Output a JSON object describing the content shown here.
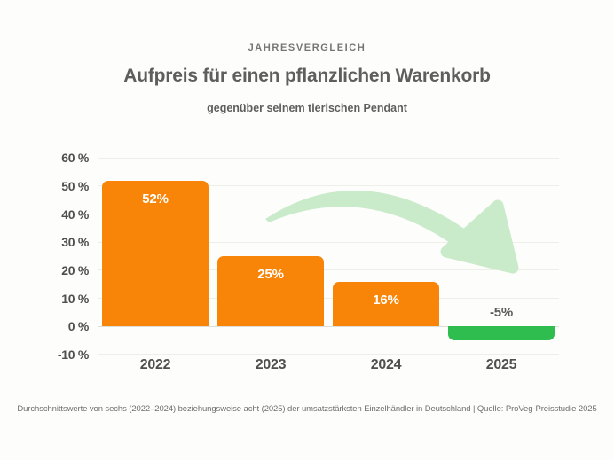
{
  "header": {
    "overline": "JAHRESVERGLEICH",
    "title": "Aufpreis für einen pflanzlichen Warenkorb",
    "subtitle": "gegenüber seinem tierischen Pendant"
  },
  "chart_data": {
    "type": "bar",
    "categories": [
      "2022",
      "2023",
      "2024",
      "2025"
    ],
    "values": [
      52,
      25,
      16,
      -5
    ],
    "bar_labels": [
      "52%",
      "25%",
      "16%",
      "-5%"
    ],
    "title": "Aufpreis für einen pflanzlichen Warenkorb",
    "xlabel": "",
    "ylabel": "",
    "ylim": [
      -10,
      60
    ],
    "grid": true,
    "yticks": [
      {
        "label": "60 %",
        "value": 60
      },
      {
        "label": "50 %",
        "value": 50
      },
      {
        "label": "40 %",
        "value": 40
      },
      {
        "label": "30 %",
        "value": 30
      },
      {
        "label": "20 %",
        "value": 20
      },
      {
        "label": "10 %",
        "value": 10
      },
      {
        "label": "0 %",
        "value": 0
      },
      {
        "label": "-10 %",
        "value": -10
      }
    ],
    "bar_colors": [
      "#F98508",
      "#F98508",
      "#F98508",
      "#2EBD4E"
    ],
    "label_colors": [
      "#FFFFFF",
      "#FFFFFF",
      "#FFFFFF",
      "#5A5A5A"
    ],
    "annotation": {
      "type": "curved-down-arrow",
      "color": "#CAEBCA"
    }
  },
  "footer": {
    "note": "Durchschnittswerte von sechs (2022–2024) beziehungsweise acht (2025) der umsatzstärksten Einzelhändler in Deutschland | Quelle: ProVeg-Preisstudie 2025"
  },
  "colors": {
    "background": "#FDFDFB",
    "grid": "#EFEFE9",
    "zero_line": "#DEDED7",
    "axis_text": "#4F4F4F",
    "title_text": "#5E5E5E",
    "footer_text": "#6F6F6F"
  }
}
